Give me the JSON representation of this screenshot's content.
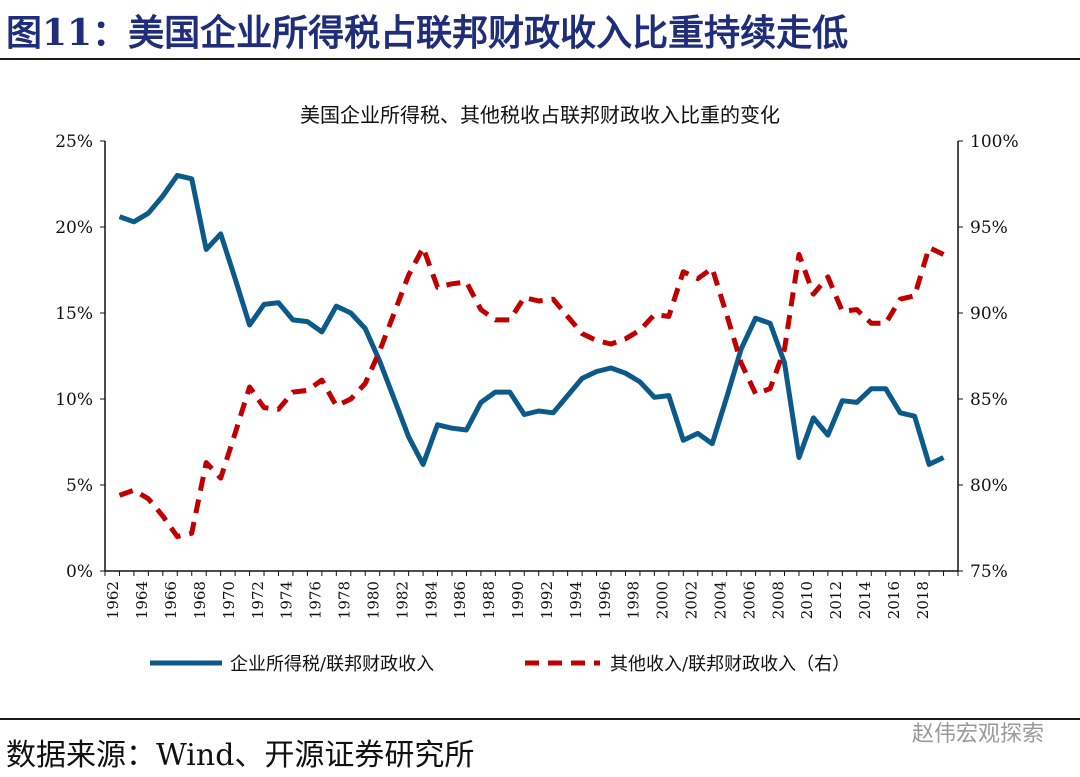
{
  "header": {
    "figure_title": "图11：美国企业所得税占联邦财政收入比重持续走低"
  },
  "footer": {
    "source": "数据来源：Wind、开源证券研究所",
    "watermark": "赵伟宏观探索"
  },
  "chart_data": {
    "type": "line",
    "title": "美国企业所得税、其他税收占联邦财政收入比重的变化",
    "x": [
      1962,
      1963,
      1964,
      1965,
      1966,
      1967,
      1968,
      1969,
      1970,
      1971,
      1972,
      1973,
      1974,
      1975,
      1976,
      1977,
      1978,
      1979,
      1980,
      1981,
      1982,
      1983,
      1984,
      1985,
      1986,
      1987,
      1988,
      1989,
      1990,
      1991,
      1992,
      1993,
      1994,
      1995,
      1996,
      1997,
      1998,
      1999,
      2000,
      2001,
      2002,
      2003,
      2004,
      2005,
      2006,
      2007,
      2008,
      2009,
      2010,
      2011,
      2012,
      2013,
      2014,
      2015,
      2016,
      2017,
      2018,
      2019
    ],
    "x_tick_labels": [
      "1962",
      "1964",
      "1966",
      "1968",
      "1970",
      "1972",
      "1974",
      "1976",
      "1978",
      "1980",
      "1982",
      "1984",
      "1986",
      "1988",
      "1990",
      "1992",
      "1994",
      "1996",
      "1998",
      "2000",
      "2002",
      "2004",
      "2006",
      "2008",
      "2010",
      "2012",
      "2014",
      "2016",
      "2018"
    ],
    "y_left": {
      "ylim": [
        0,
        25
      ],
      "ticks": [
        "0%",
        "5%",
        "10%",
        "15%",
        "20%",
        "25%"
      ]
    },
    "y_right": {
      "ylim": [
        75,
        100
      ],
      "ticks": [
        "75%",
        "80%",
        "85%",
        "90%",
        "95%",
        "100%"
      ]
    },
    "series": [
      {
        "name": "企业所得税/联邦财政收入",
        "axis": "left",
        "color": "#0b5a8a",
        "style": "solid",
        "values": [
          20.6,
          20.3,
          20.8,
          21.8,
          23.0,
          22.8,
          18.7,
          19.6,
          17.0,
          14.3,
          15.5,
          15.6,
          14.6,
          14.5,
          13.9,
          15.4,
          15.0,
          14.1,
          12.2,
          10.0,
          7.8,
          6.2,
          8.5,
          8.3,
          8.2,
          9.8,
          10.4,
          10.4,
          9.1,
          9.3,
          9.2,
          10.2,
          11.2,
          11.6,
          11.8,
          11.5,
          11.0,
          10.1,
          10.2,
          7.6,
          8.0,
          7.4,
          10.1,
          12.9,
          14.7,
          14.4,
          12.1,
          6.6,
          8.9,
          7.9,
          9.9,
          9.8,
          10.6,
          10.6,
          9.2,
          9.0,
          6.2,
          6.6
        ]
      },
      {
        "name": "其他收入/联邦财政收入（右）",
        "axis": "right",
        "color": "#c00000",
        "style": "dashed",
        "values": [
          79.4,
          79.7,
          79.2,
          78.2,
          77.0,
          77.2,
          81.3,
          80.4,
          83.0,
          85.7,
          84.5,
          84.4,
          85.4,
          85.5,
          86.1,
          84.6,
          85.0,
          85.9,
          87.8,
          90.0,
          92.2,
          93.8,
          91.5,
          91.7,
          91.8,
          90.2,
          89.6,
          89.6,
          90.9,
          90.7,
          90.8,
          89.8,
          88.8,
          88.4,
          88.2,
          88.5,
          89.0,
          89.9,
          89.8,
          92.4,
          92.0,
          92.6,
          89.9,
          87.1,
          85.3,
          85.6,
          87.9,
          93.4,
          91.1,
          92.1,
          90.1,
          90.2,
          89.4,
          89.4,
          90.8,
          91.0,
          93.8,
          93.4
        ]
      }
    ]
  }
}
